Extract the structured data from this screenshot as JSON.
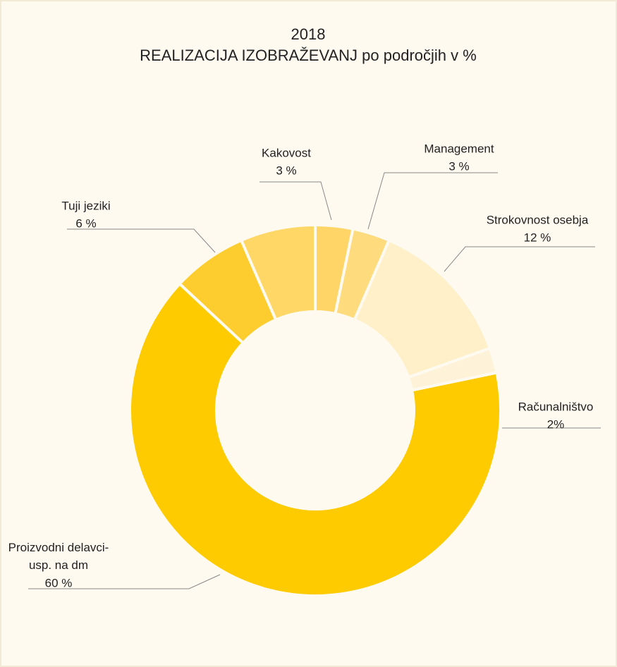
{
  "chart_data": {
    "type": "donut",
    "title": "2018",
    "subtitle": "REALIZACIJA IZOBRAŽEVANJ po področjih v %",
    "categories": [
      "Kakovost",
      "Management",
      "Strokovnost osebja",
      "Računalništvo",
      "Proizvodni delavci-\nusp. na dm",
      "Tuji jeziki",
      null
    ],
    "values": [
      3,
      3,
      12,
      2,
      60,
      6,
      6
    ],
    "value_labels": [
      "3 %",
      "3 %",
      "12 %",
      "2%",
      "60 %",
      "6 %",
      null
    ],
    "colors": [
      "#fed566",
      "#fedb7c",
      "#fff0c9",
      "#fef3d8",
      "#fdcb00",
      "#fdcd30",
      "#fed766"
    ]
  }
}
